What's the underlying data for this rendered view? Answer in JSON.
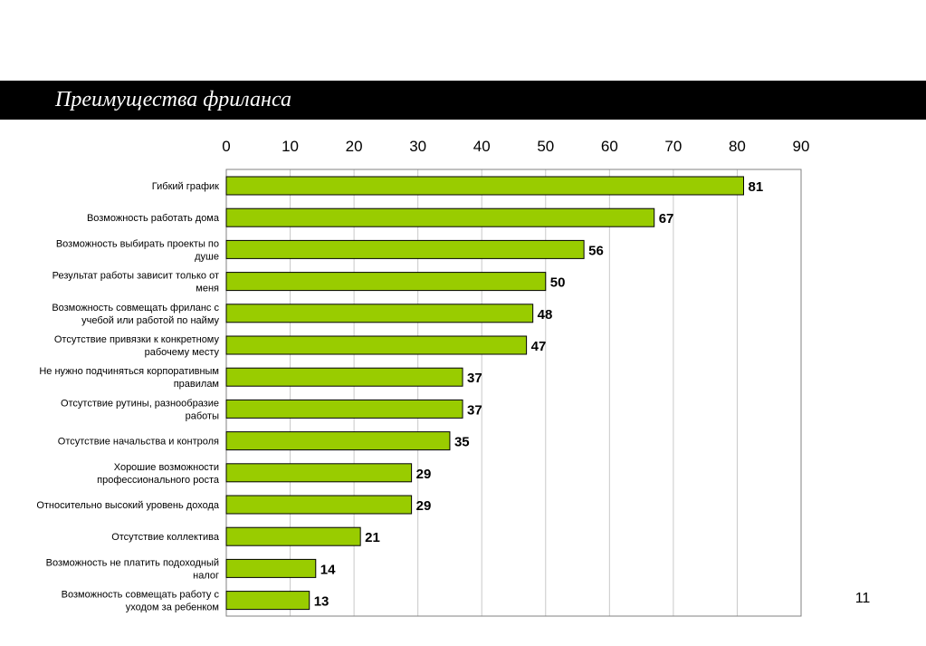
{
  "slide": {
    "title": "Преимущества фриланса",
    "page_number": "11"
  },
  "colors": {
    "bar_fill": "#99cc00",
    "bar_stroke": "#000000",
    "grid": "#c8c8c8",
    "title_bar": "#000000"
  },
  "chart_data": {
    "type": "bar",
    "orientation": "horizontal",
    "xlim": [
      0,
      90
    ],
    "x_ticks": [
      "0",
      "10",
      "20",
      "30",
      "40",
      "50",
      "60",
      "70",
      "80",
      "90"
    ],
    "x_axis_position": "top",
    "grid": true,
    "categories": [
      [
        "Гибкий график"
      ],
      [
        "Возможность работать дома"
      ],
      [
        "Возможность выбирать проекты по",
        "душе"
      ],
      [
        "Результат работы зависит только от",
        "меня"
      ],
      [
        "Возможность совмещать фриланс с",
        "учебой или работой по найму"
      ],
      [
        "Отсутствие привязки к конкретному",
        "рабочему месту"
      ],
      [
        "Не нужно подчиняться корпоративным",
        "правилам"
      ],
      [
        "Отсутствие рутины, разнообразие",
        "работы"
      ],
      [
        "Отсутствие начальства и контроля"
      ],
      [
        "Хорошие возможности",
        "профессионального роста"
      ],
      [
        "Относительно высокий уровень дохода"
      ],
      [
        "Отсутствие коллектива"
      ],
      [
        "Возможность не платить подоходный",
        "налог"
      ],
      [
        "Возможность совмещать работу с",
        "уходом за ребенком"
      ]
    ],
    "values": [
      81,
      67,
      56,
      50,
      48,
      47,
      37,
      37,
      35,
      29,
      29,
      21,
      14,
      13
    ],
    "value_labels": [
      "81",
      "67",
      "56",
      "50",
      "48",
      "47",
      "37",
      "37",
      "35",
      "29",
      "29",
      "21",
      "14",
      "13"
    ]
  }
}
